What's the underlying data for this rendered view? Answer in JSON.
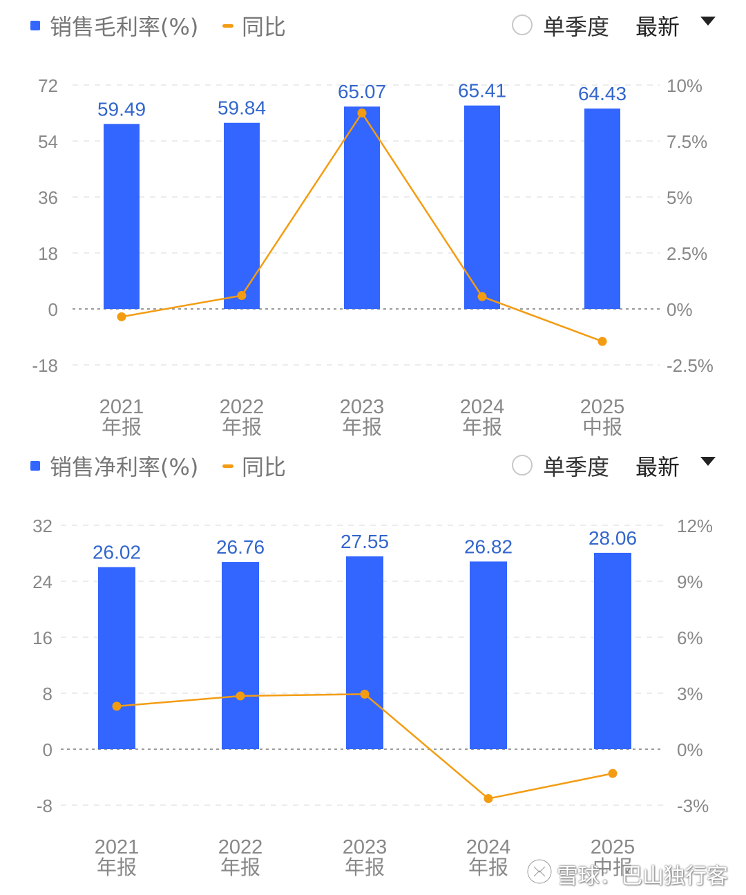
{
  "chart_data": [
    {
      "type": "bar",
      "title": "销售毛利率(%)",
      "legend": [
        {
          "name": "销售毛利率(%)",
          "color": "#3366ff",
          "shape": "square"
        },
        {
          "name": "同比",
          "color": "#f39c12",
          "shape": "line"
        }
      ],
      "categories": [
        {
          "year": "2021",
          "period": "年报"
        },
        {
          "year": "2022",
          "period": "年报"
        },
        {
          "year": "2023",
          "period": "年报"
        },
        {
          "year": "2024",
          "period": "年报"
        },
        {
          "year": "2025",
          "period": "中报"
        }
      ],
      "series": [
        {
          "name": "销售毛利率(%)",
          "type": "bar",
          "axis": "left",
          "color": "#3366ff",
          "values": [
            59.49,
            59.84,
            65.07,
            65.41,
            64.43
          ]
        },
        {
          "name": "同比",
          "type": "line",
          "axis": "right",
          "color": "#f39c12",
          "values": [
            -0.35,
            0.6,
            8.75,
            0.55,
            -1.45
          ]
        }
      ],
      "data_labels": [
        "59.49",
        "59.84",
        "65.07",
        "65.41",
        "64.43"
      ],
      "y_left": {
        "min": -18,
        "max": 72,
        "ticks": [
          72,
          54,
          36,
          18,
          0,
          -18
        ]
      },
      "y_right": {
        "min": -2.5,
        "max": 10,
        "ticks": [
          "10%",
          "7.5%",
          "5%",
          "2.5%",
          "0%",
          "-2.5%"
        ]
      },
      "grid": true,
      "legend_position": "top-left"
    },
    {
      "type": "bar",
      "title": "销售净利率(%)",
      "legend": [
        {
          "name": "销售净利率(%)",
          "color": "#3366ff",
          "shape": "square"
        },
        {
          "name": "同比",
          "color": "#f39c12",
          "shape": "line"
        }
      ],
      "categories": [
        {
          "year": "2021",
          "period": "年报"
        },
        {
          "year": "2022",
          "period": "年报"
        },
        {
          "year": "2023",
          "period": "年报"
        },
        {
          "year": "2024",
          "period": "年报"
        },
        {
          "year": "2025",
          "period": "中报"
        }
      ],
      "series": [
        {
          "name": "销售净利率(%)",
          "type": "bar",
          "axis": "left",
          "color": "#3366ff",
          "values": [
            26.02,
            26.76,
            27.55,
            26.82,
            28.06
          ]
        },
        {
          "name": "同比",
          "type": "line",
          "axis": "right",
          "color": "#f39c12",
          "values": [
            2.3,
            2.85,
            2.95,
            -2.65,
            -1.3
          ]
        }
      ],
      "data_labels": [
        "26.02",
        "26.76",
        "27.55",
        "26.82",
        "28.06"
      ],
      "y_left": {
        "min": -8,
        "max": 32,
        "ticks": [
          32,
          24,
          16,
          8,
          0,
          -8
        ]
      },
      "y_right": {
        "min": -3,
        "max": 12,
        "ticks": [
          "12%",
          "9%",
          "6%",
          "3%",
          "0%",
          "-3%"
        ]
      },
      "grid": true,
      "legend_position": "top-left"
    }
  ],
  "controls": {
    "single_quarter_label": "单季度",
    "dropdown_label": "最新"
  },
  "colors": {
    "bar": "#3366ff",
    "line": "#f39c12",
    "label": "#3366cc",
    "axis_text": "#888888",
    "grid": "#e6e6e6"
  },
  "watermark": {
    "text": "雪球：巴山独行客"
  }
}
